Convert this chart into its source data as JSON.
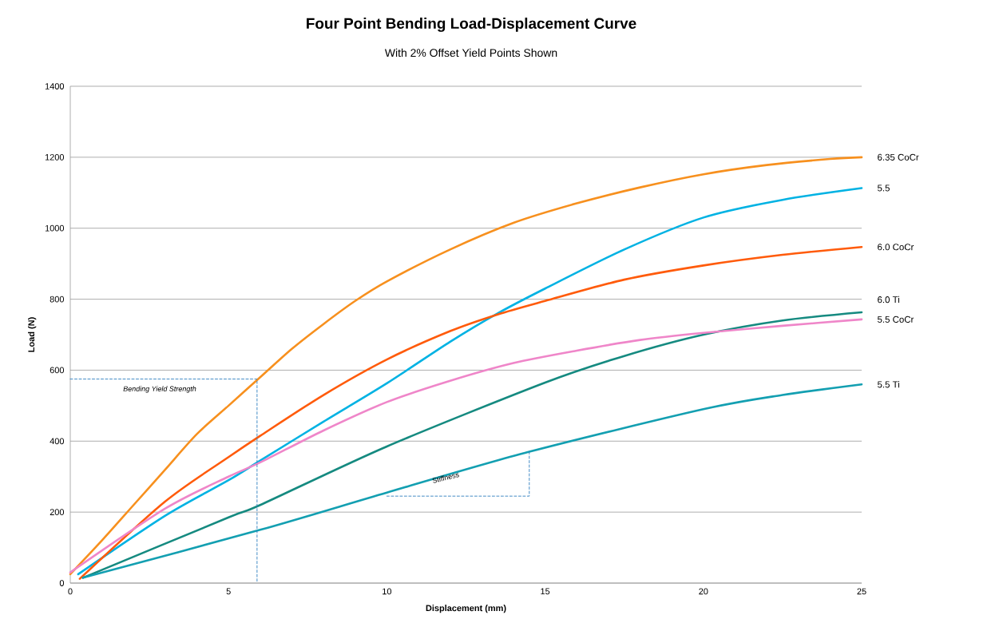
{
  "chart_data": {
    "type": "line",
    "title": "Four Point Bending Load-Displacement Curve",
    "subtitle": "With 2% Offset Yield Points Shown",
    "xlabel": "Displacement (mm)",
    "ylabel": "Load (N)",
    "xlim": [
      0,
      25
    ],
    "ylim": [
      0,
      1400
    ],
    "xticks": [
      0,
      5,
      10,
      15,
      20,
      25
    ],
    "yticks": [
      0,
      200,
      400,
      600,
      800,
      1000,
      1200,
      1400
    ],
    "grid": "y",
    "series": [
      {
        "name": "6.35 CoCr",
        "color": "#f7901e",
        "x": [
          0,
          1,
          2,
          3,
          4,
          5,
          6,
          7,
          8,
          9,
          10,
          12,
          14,
          16,
          18,
          20,
          22,
          24,
          25
        ],
        "values": [
          25,
          120,
          220,
          320,
          420,
          500,
          580,
          660,
          730,
          795,
          850,
          940,
          1015,
          1070,
          1115,
          1152,
          1178,
          1195,
          1200
        ]
      },
      {
        "name": "5.5",
        "color": "#00b2e3",
        "x": [
          0.25,
          3,
          5,
          6,
          8,
          10,
          12,
          13.5,
          15,
          17.5,
          20,
          22.5,
          25
        ],
        "values": [
          25,
          190,
          290,
          345,
          455,
          563,
          680,
          760,
          830,
          940,
          1030,
          1080,
          1113
        ]
      },
      {
        "name": "6.0 CoCr",
        "color": "#ff5b0b",
        "x": [
          0.3,
          3,
          5,
          6,
          8,
          10,
          12,
          13.5,
          15,
          17.5,
          20,
          22.5,
          25
        ],
        "values": [
          12,
          230,
          355,
          415,
          530,
          630,
          710,
          757,
          795,
          855,
          895,
          925,
          947
        ]
      },
      {
        "name": "6.0 Ti",
        "color": "#158a80",
        "x": [
          0.4,
          5,
          6,
          10,
          15,
          17.5,
          20,
          22.5,
          25
        ],
        "values": [
          15,
          185,
          220,
          385,
          565,
          640,
          700,
          740,
          763
        ]
      },
      {
        "name": "5.5 CoCr",
        "color": "#ef86c9",
        "x": [
          0,
          3,
          5,
          6,
          8,
          10,
          12,
          14,
          16,
          18,
          20,
          22.5,
          25
        ],
        "values": [
          30,
          210,
          300,
          340,
          430,
          510,
          570,
          620,
          655,
          685,
          705,
          725,
          743
        ]
      },
      {
        "name": "5.5 Ti",
        "color": "#139fb1",
        "x": [
          0.4,
          6,
          10,
          14.5,
          20,
          22.5,
          25
        ],
        "values": [
          15,
          150,
          255,
          370,
          490,
          530,
          560
        ]
      },
      {
        "color": "#2f7fbf",
        "line_style": "dashed",
        "x": [
          0,
          5.9,
          5.9
        ],
        "values": [
          575,
          575,
          0
        ]
      },
      {
        "color": "#2f7fbf",
        "line_style": "dashed",
        "x": [
          10,
          14.5,
          14.5
        ],
        "values": [
          245,
          245,
          370
        ]
      }
    ],
    "annotations": [
      "Bending Yield Strength",
      "Stiffness"
    ]
  }
}
